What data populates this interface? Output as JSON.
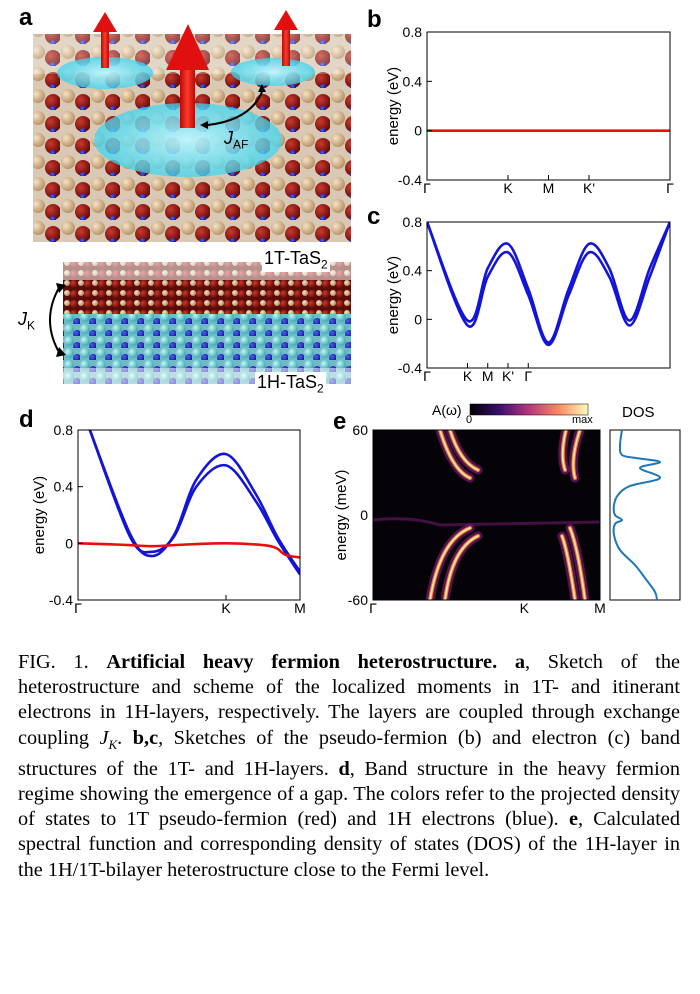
{
  "figure": {
    "panels": {
      "a": "a",
      "b": "b",
      "c": "c",
      "d": "d",
      "e": "e"
    },
    "sketch": {
      "jaf_main": "J",
      "jaf_sub": "AF",
      "jk_main": "J",
      "jk_sub": "K",
      "layer_top_main": "1T-TaS",
      "layer_top_sub": "2",
      "layer_bottom_main": "1H-TaS",
      "layer_bottom_sub": "2"
    },
    "colorbar": {
      "label": "A(ω)",
      "min": "0",
      "max": "max"
    },
    "dos_label": "DOS"
  },
  "chart_data": [
    {
      "id": "b",
      "type": "line",
      "ylabel": "energy (eV)",
      "ylim": [
        -0.4,
        0.8
      ],
      "yticks": [
        "0.8",
        "0.4",
        "0",
        "-0.4"
      ],
      "xticks": [
        "Γ",
        "K",
        "M",
        "K'",
        "Γ"
      ],
      "x": [
        0,
        1,
        1.5,
        2,
        3
      ],
      "series": [
        {
          "color": "#e8100a",
          "x": [
            0,
            3
          ],
          "y": [
            0,
            0
          ]
        }
      ]
    },
    {
      "id": "c",
      "type": "line",
      "ylabel": "energy (eV)",
      "ylim": [
        -0.4,
        0.8
      ],
      "yticks": [
        "0.8",
        "0.4",
        "0",
        "-0.4"
      ],
      "xticks": [
        "Γ",
        "K",
        "M",
        "K'",
        "Γ"
      ],
      "x": [
        0,
        0.5,
        0.75,
        1,
        1.25,
        1.5,
        1.75,
        2,
        2.25,
        2.5,
        2.75,
        3
      ],
      "series": [
        {
          "color": "#1414d8",
          "x": [
            0,
            0.5,
            0.75,
            1,
            1.25,
            1.5,
            1.75,
            2,
            2.25,
            2.5,
            2.75,
            3
          ],
          "y": [
            0.8,
            -0.05,
            0.35,
            0.55,
            0.2,
            -0.21,
            0.2,
            0.55,
            0.35,
            -0.05,
            0.35,
            0.8
          ]
        },
        {
          "color": "#1414d8",
          "x": [
            0,
            0.5,
            0.75,
            1,
            1.25,
            1.5,
            1.75,
            2,
            2.25,
            2.5,
            2.75,
            3
          ],
          "y": [
            0.8,
            -0.01,
            0.42,
            0.62,
            0.25,
            -0.19,
            0.25,
            0.62,
            0.42,
            -0.01,
            0.42,
            0.8
          ]
        }
      ]
    },
    {
      "id": "d",
      "type": "line",
      "ylabel": "energy (eV)",
      "ylim": [
        -0.4,
        0.8
      ],
      "yticks": [
        "0.8",
        "0.4",
        "0",
        "-0.4"
      ],
      "xticks": [
        "Γ",
        "K",
        "M"
      ],
      "x": [
        0,
        1,
        1.5
      ],
      "series": [
        {
          "color": "#1414d8",
          "x": [
            0.08,
            0.35,
            0.5,
            0.65,
            0.8,
            1.0,
            1.2,
            1.35,
            1.5
          ],
          "y": [
            0.8,
            0.05,
            -0.06,
            0.05,
            0.4,
            0.55,
            0.3,
            0.02,
            -0.22
          ]
        },
        {
          "color": "#1414d8",
          "x": [
            0.08,
            0.35,
            0.5,
            0.65,
            0.8,
            1.0,
            1.2,
            1.35,
            1.5
          ],
          "y": [
            0.8,
            0.07,
            -0.09,
            0.06,
            0.45,
            0.63,
            0.35,
            0.04,
            -0.2
          ]
        },
        {
          "color": "#e8100a",
          "x": [
            0,
            0.3,
            0.5,
            0.7,
            1.0,
            1.3,
            1.4,
            1.5
          ],
          "y": [
            0,
            -0.01,
            -0.02,
            -0.01,
            0,
            -0.02,
            -0.08,
            -0.1
          ]
        }
      ]
    },
    {
      "id": "e",
      "type": "heatmap",
      "ylabel": "energy (meV)",
      "ylim": [
        -60,
        60
      ],
      "yticks": [
        "60",
        "0",
        "-60"
      ],
      "xticks": [
        "Γ",
        "K",
        "M"
      ],
      "colorbar_range": [
        "0",
        "max"
      ]
    }
  ],
  "caption": {
    "fig": "FIG. 1.",
    "title": "Artificial heavy fermion heterostructure.",
    "pa": "a",
    "ta": ", Sketch of the heterostructure and scheme of the localized moments in 1T- and itinerant electrons in 1H-layers, respectively. The layers are coupled through exchange coupling",
    "jk": "J",
    "jk_sub": "K",
    "tb_pre": ". ",
    "pbc": "b,c",
    "tbc": ", Sketches of the pseudo-fermion (b) and electron (c) band structures of the 1T- and 1H-layers. ",
    "pd": "d",
    "td": ", Band structure in the heavy fermion regime showing the emergence of a gap. The colors refer to the projected density of states to 1T pseudo-fermion (red) and 1H electrons (blue). ",
    "pe": "e",
    "te": ", Calculated spectral function and corresponding density of states (DOS) of the 1H-layer in the 1H/1T-bilayer heterostructure close to the Fermi level."
  }
}
